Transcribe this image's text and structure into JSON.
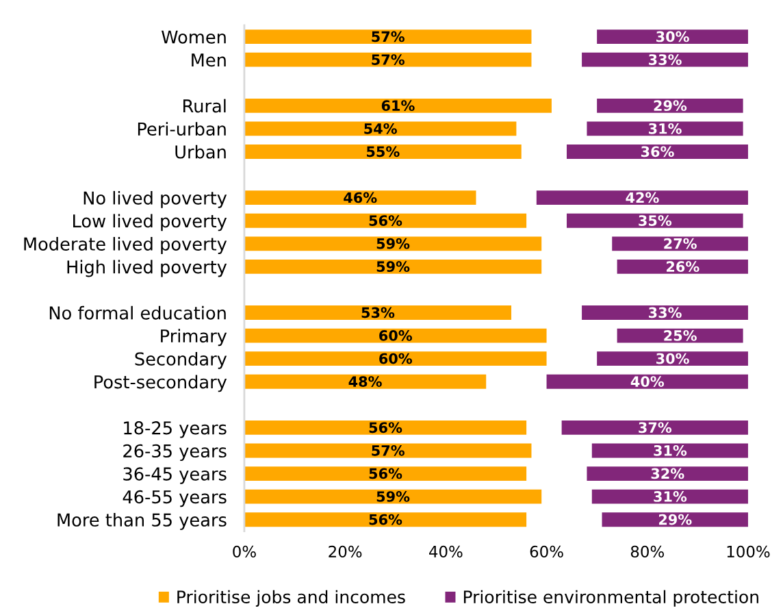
{
  "chart_data": {
    "type": "bar",
    "orientation": "horizontal",
    "categories": [
      "Women",
      "Men",
      null,
      "Rural",
      "Peri-urban",
      "Urban",
      null,
      "No lived poverty",
      "Low lived poverty",
      "Moderate lived poverty",
      "High lived poverty",
      null,
      "No formal education",
      "Primary",
      "Secondary",
      "Post-secondary",
      null,
      "18-25 years",
      "26-35 years",
      "36-45 years",
      "46-55 years",
      "More than 55 years"
    ],
    "series": [
      {
        "name": "Prioritise jobs and incomes",
        "color": "#ffa800",
        "values": [
          57,
          57,
          null,
          61,
          54,
          55,
          null,
          46,
          56,
          59,
          59,
          null,
          53,
          60,
          60,
          48,
          null,
          56,
          57,
          56,
          59,
          56
        ],
        "base": [
          0,
          0,
          null,
          0,
          0,
          0,
          null,
          0,
          0,
          0,
          0,
          null,
          0,
          0,
          0,
          0,
          null,
          0,
          0,
          0,
          0,
          0
        ],
        "value_labels": [
          "57%",
          "57%",
          null,
          "61%",
          "54%",
          "55%",
          null,
          "46%",
          "56%",
          "59%",
          "59%",
          null,
          "53%",
          "60%",
          "60%",
          "48%",
          null,
          "56%",
          "57%",
          "56%",
          "59%",
          "56%"
        ]
      },
      {
        "name": "Prioritise environmental protection",
        "color": "#82267a",
        "values": [
          30,
          33,
          null,
          29,
          31,
          36,
          null,
          42,
          35,
          27,
          26,
          null,
          33,
          25,
          30,
          40,
          null,
          37,
          31,
          32,
          31,
          29
        ],
        "base": [
          70,
          67,
          null,
          70,
          68,
          64,
          null,
          58,
          64,
          73,
          74,
          null,
          67,
          74,
          70,
          60,
          null,
          63,
          69,
          68,
          69,
          71
        ],
        "value_labels": [
          "30%",
          "33%",
          null,
          "29%",
          "31%",
          "36%",
          null,
          "42%",
          "35%",
          "27%",
          "26%",
          null,
          "33%",
          "25%",
          "30%",
          "40%",
          null,
          "37%",
          "31%",
          "32%",
          "31%",
          "29%"
        ]
      }
    ],
    "xlim": [
      0,
      100
    ],
    "xticks": [
      {
        "value": 0,
        "label": "0%"
      },
      {
        "value": 20,
        "label": "20%"
      },
      {
        "value": 40,
        "label": "40%"
      },
      {
        "value": 60,
        "label": "60%"
      },
      {
        "value": 80,
        "label": "80%"
      },
      {
        "value": 100,
        "label": "100%"
      }
    ],
    "legend": "bottom"
  }
}
